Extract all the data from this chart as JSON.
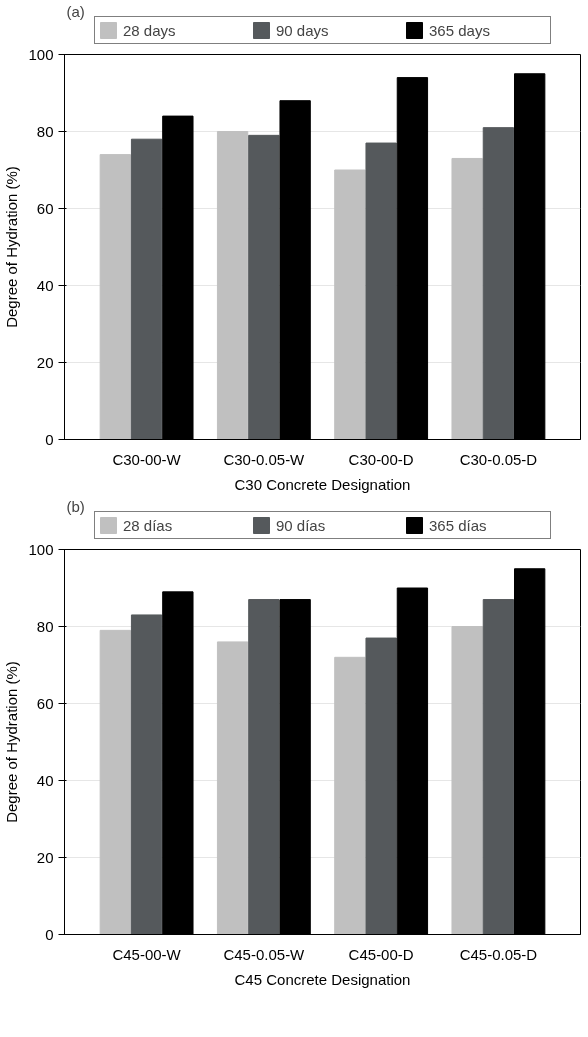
{
  "chart_data": [
    {
      "type": "bar",
      "annotations": [
        "(a)"
      ],
      "xlabel": "C30 Concrete Designation",
      "ylabel": "Degree of Hydration (%)",
      "categories": [
        "C30-00-W",
        "C30-0.05-W",
        "C30-00-D",
        "C30-0.05-D"
      ],
      "series": [
        {
          "name": "28 days",
          "color": "#c0c0c0",
          "values": [
            74,
            80,
            70,
            73
          ]
        },
        {
          "name": "90 days",
          "color": "#55595c",
          "values": [
            78,
            79,
            77,
            81
          ]
        },
        {
          "name": "365 days",
          "color": "#000000",
          "values": [
            84,
            88,
            94,
            95
          ]
        }
      ],
      "ylim": [
        0,
        100
      ],
      "yticks": [
        0,
        20,
        40,
        60,
        80,
        100
      ],
      "grid": "y",
      "legend": "top"
    },
    {
      "type": "bar",
      "annotations": [
        "(b)"
      ],
      "xlabel": "C45 Concrete Designation",
      "ylabel": "Degree of Hydration (%)",
      "categories": [
        "C45-00-W",
        "C45-0.05-W",
        "C45-00-D",
        "C45-0.05-D"
      ],
      "series": [
        {
          "name": "28 días",
          "color": "#c0c0c0",
          "values": [
            79,
            76,
            72,
            80
          ]
        },
        {
          "name": "90 días",
          "color": "#55595c",
          "values": [
            83,
            87,
            77,
            87
          ]
        },
        {
          "name": "365 días",
          "color": "#000000",
          "values": [
            89,
            87,
            90,
            95
          ]
        }
      ],
      "ylim": [
        0,
        100
      ],
      "yticks": [
        0,
        20,
        40,
        60,
        80,
        100
      ],
      "grid": "y",
      "legend": "top"
    }
  ]
}
